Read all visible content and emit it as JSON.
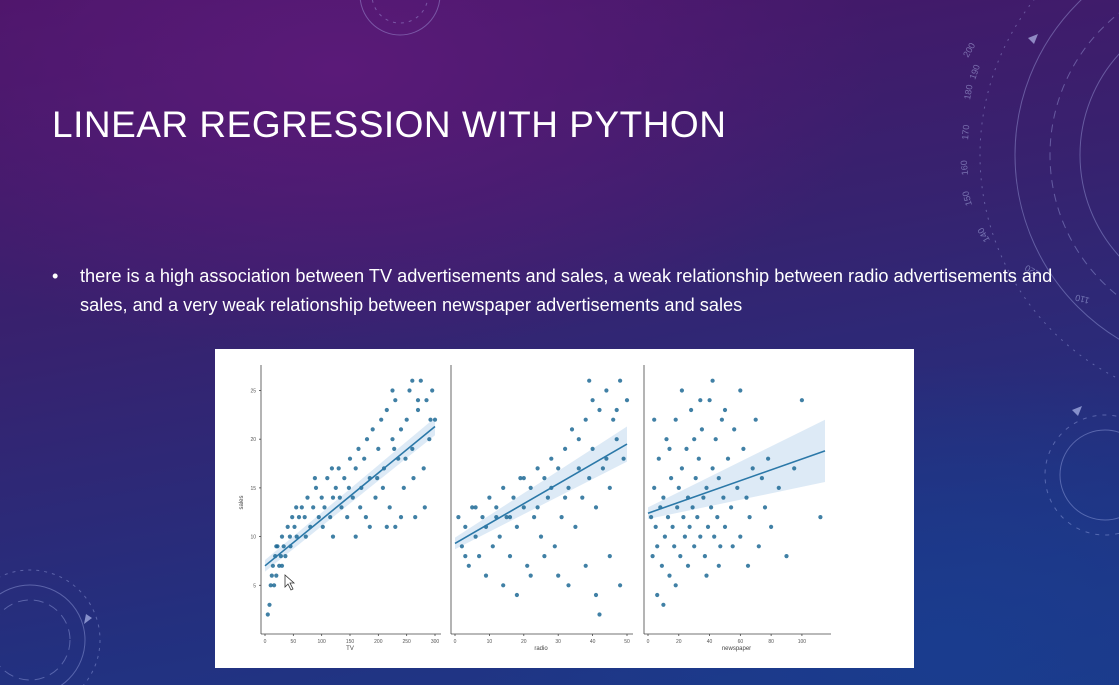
{
  "slide": {
    "title": "LINEAR REGRESSION WITH PYTHON",
    "bullets": [
      "there is a high association between TV advertisements and sales, a weak relationship between radio advertisements and sales, and a very weak relationship between newspaper advertisements and sales"
    ],
    "bullet_symbol": "•",
    "decor_numbers": [
      "200",
      "190",
      "180",
      "170",
      "160",
      "150",
      "140",
      "120",
      "110"
    ]
  },
  "chart_data": [
    {
      "type": "scatter",
      "xlabel": "TV",
      "ylabel": "sales",
      "xlim": [
        0,
        300
      ],
      "ylim": [
        0,
        27
      ],
      "xticks": [
        0,
        50,
        100,
        150,
        200,
        250,
        300
      ],
      "yticks": [
        5,
        10,
        15,
        20,
        25
      ],
      "regression": [
        [
          0,
          7.0
        ],
        [
          300,
          21.3
        ]
      ],
      "points": [
        [
          5,
          2
        ],
        [
          8,
          3
        ],
        [
          10,
          5
        ],
        [
          12,
          6
        ],
        [
          14,
          7
        ],
        [
          16,
          5
        ],
        [
          18,
          8
        ],
        [
          20,
          6
        ],
        [
          22,
          9
        ],
        [
          25,
          7
        ],
        [
          28,
          8
        ],
        [
          30,
          10
        ],
        [
          33,
          9
        ],
        [
          36,
          8
        ],
        [
          40,
          11
        ],
        [
          44,
          10
        ],
        [
          48,
          12
        ],
        [
          52,
          11
        ],
        [
          56,
          10
        ],
        [
          60,
          12
        ],
        [
          65,
          13
        ],
        [
          70,
          12
        ],
        [
          75,
          14
        ],
        [
          80,
          11
        ],
        [
          85,
          13
        ],
        [
          90,
          15
        ],
        [
          95,
          12
        ],
        [
          100,
          14
        ],
        [
          105,
          13
        ],
        [
          110,
          16
        ],
        [
          115,
          12
        ],
        [
          120,
          14
        ],
        [
          125,
          15
        ],
        [
          130,
          17
        ],
        [
          135,
          13
        ],
        [
          140,
          16
        ],
        [
          145,
          12
        ],
        [
          150,
          18
        ],
        [
          155,
          14
        ],
        [
          160,
          17
        ],
        [
          165,
          19
        ],
        [
          170,
          15
        ],
        [
          175,
          18
        ],
        [
          180,
          20
        ],
        [
          185,
          16
        ],
        [
          190,
          21
        ],
        [
          195,
          14
        ],
        [
          200,
          19
        ],
        [
          205,
          22
        ],
        [
          210,
          17
        ],
        [
          215,
          23
        ],
        [
          220,
          13
        ],
        [
          225,
          20
        ],
        [
          230,
          24
        ],
        [
          235,
          18
        ],
        [
          240,
          21
        ],
        [
          245,
          15
        ],
        [
          250,
          22
        ],
        [
          255,
          25
        ],
        [
          260,
          19
        ],
        [
          265,
          12
        ],
        [
          270,
          23
        ],
        [
          275,
          26
        ],
        [
          280,
          17
        ],
        [
          285,
          24
        ],
        [
          290,
          20
        ],
        [
          295,
          25
        ],
        [
          300,
          22
        ],
        [
          215,
          11
        ],
        [
          240,
          12
        ],
        [
          230,
          11
        ],
        [
          185,
          11
        ],
        [
          160,
          10
        ],
        [
          120,
          10
        ],
        [
          20,
          9
        ],
        [
          30,
          7
        ],
        [
          45,
          9
        ],
        [
          55,
          13
        ],
        [
          72,
          10
        ],
        [
          88,
          16
        ],
        [
          102,
          11
        ],
        [
          118,
          17
        ],
        [
          132,
          14
        ],
        [
          148,
          15
        ],
        [
          168,
          13
        ],
        [
          178,
          12
        ],
        [
          198,
          16
        ],
        [
          208,
          15
        ],
        [
          228,
          19
        ],
        [
          248,
          18
        ],
        [
          262,
          16
        ],
        [
          282,
          13
        ],
        [
          292,
          22
        ],
        [
          225,
          25
        ],
        [
          260,
          26
        ],
        [
          270,
          24
        ]
      ]
    },
    {
      "type": "scatter",
      "xlabel": "radio",
      "ylabel": "",
      "xlim": [
        0,
        50
      ],
      "ylim": [
        0,
        27
      ],
      "xticks": [
        0,
        10,
        20,
        30,
        40,
        50
      ],
      "yticks": [],
      "regression": [
        [
          0,
          9.3
        ],
        [
          50,
          19.5
        ]
      ],
      "points": [
        [
          1,
          12
        ],
        [
          2,
          9
        ],
        [
          3,
          11
        ],
        [
          4,
          7
        ],
        [
          5,
          13
        ],
        [
          6,
          10
        ],
        [
          7,
          8
        ],
        [
          8,
          12
        ],
        [
          9,
          11
        ],
        [
          10,
          14
        ],
        [
          11,
          9
        ],
        [
          12,
          13
        ],
        [
          13,
          10
        ],
        [
          14,
          15
        ],
        [
          15,
          12
        ],
        [
          16,
          8
        ],
        [
          17,
          14
        ],
        [
          18,
          11
        ],
        [
          19,
          16
        ],
        [
          20,
          13
        ],
        [
          21,
          7
        ],
        [
          22,
          15
        ],
        [
          23,
          12
        ],
        [
          24,
          17
        ],
        [
          25,
          10
        ],
        [
          26,
          16
        ],
        [
          27,
          14
        ],
        [
          28,
          18
        ],
        [
          29,
          9
        ],
        [
          30,
          17
        ],
        [
          31,
          12
        ],
        [
          32,
          19
        ],
        [
          33,
          15
        ],
        [
          34,
          21
        ],
        [
          35,
          11
        ],
        [
          36,
          20
        ],
        [
          37,
          14
        ],
        [
          38,
          22
        ],
        [
          39,
          16
        ],
        [
          40,
          24
        ],
        [
          41,
          13
        ],
        [
          42,
          23
        ],
        [
          43,
          17
        ],
        [
          44,
          25
        ],
        [
          45,
          15
        ],
        [
          46,
          22
        ],
        [
          47,
          20
        ],
        [
          48,
          26
        ],
        [
          49,
          18
        ],
        [
          50,
          24
        ],
        [
          3,
          8
        ],
        [
          6,
          13
        ],
        [
          9,
          6
        ],
        [
          14,
          5
        ],
        [
          18,
          4
        ],
        [
          22,
          6
        ],
        [
          26,
          8
        ],
        [
          30,
          6
        ],
        [
          33,
          5
        ],
        [
          38,
          7
        ],
        [
          41,
          4
        ],
        [
          45,
          8
        ],
        [
          48,
          5
        ],
        [
          12,
          12
        ],
        [
          16,
          12
        ],
        [
          20,
          16
        ],
        [
          24,
          13
        ],
        [
          28,
          15
        ],
        [
          32,
          14
        ],
        [
          36,
          17
        ],
        [
          40,
          19
        ],
        [
          44,
          18
        ],
        [
          47,
          23
        ],
        [
          39,
          26
        ],
        [
          42,
          2
        ]
      ]
    },
    {
      "type": "scatter",
      "xlabel": "newspaper",
      "ylabel": "",
      "xlim": [
        0,
        115
      ],
      "ylim": [
        0,
        27
      ],
      "xticks": [
        0,
        20,
        40,
        60,
        80,
        100
      ],
      "yticks": [],
      "regression": [
        [
          0,
          12.4
        ],
        [
          115,
          18.8
        ]
      ],
      "points": [
        [
          2,
          12
        ],
        [
          3,
          8
        ],
        [
          4,
          15
        ],
        [
          5,
          11
        ],
        [
          6,
          9
        ],
        [
          7,
          18
        ],
        [
          8,
          13
        ],
        [
          9,
          7
        ],
        [
          10,
          14
        ],
        [
          11,
          10
        ],
        [
          12,
          20
        ],
        [
          13,
          12
        ],
        [
          14,
          6
        ],
        [
          15,
          16
        ],
        [
          16,
          11
        ],
        [
          17,
          9
        ],
        [
          18,
          22
        ],
        [
          19,
          13
        ],
        [
          20,
          15
        ],
        [
          21,
          8
        ],
        [
          22,
          17
        ],
        [
          23,
          12
        ],
        [
          24,
          10
        ],
        [
          25,
          19
        ],
        [
          26,
          14
        ],
        [
          27,
          11
        ],
        [
          28,
          23
        ],
        [
          29,
          13
        ],
        [
          30,
          9
        ],
        [
          31,
          16
        ],
        [
          32,
          12
        ],
        [
          33,
          18
        ],
        [
          34,
          10
        ],
        [
          35,
          21
        ],
        [
          36,
          14
        ],
        [
          37,
          8
        ],
        [
          38,
          15
        ],
        [
          39,
          11
        ],
        [
          40,
          24
        ],
        [
          41,
          13
        ],
        [
          42,
          17
        ],
        [
          43,
          10
        ],
        [
          44,
          20
        ],
        [
          45,
          12
        ],
        [
          46,
          16
        ],
        [
          47,
          9
        ],
        [
          48,
          22
        ],
        [
          49,
          14
        ],
        [
          50,
          11
        ],
        [
          52,
          18
        ],
        [
          54,
          13
        ],
        [
          56,
          21
        ],
        [
          58,
          15
        ],
        [
          60,
          10
        ],
        [
          62,
          19
        ],
        [
          64,
          14
        ],
        [
          66,
          12
        ],
        [
          68,
          17
        ],
        [
          70,
          22
        ],
        [
          72,
          9
        ],
        [
          74,
          16
        ],
        [
          76,
          13
        ],
        [
          78,
          18
        ],
        [
          80,
          11
        ],
        [
          85,
          15
        ],
        [
          90,
          8
        ],
        [
          95,
          17
        ],
        [
          100,
          24
        ],
        [
          112,
          12
        ],
        [
          4,
          22
        ],
        [
          6,
          4
        ],
        [
          10,
          3
        ],
        [
          14,
          19
        ],
        [
          18,
          5
        ],
        [
          22,
          25
        ],
        [
          26,
          7
        ],
        [
          30,
          20
        ],
        [
          34,
          24
        ],
        [
          38,
          6
        ],
        [
          42,
          26
        ],
        [
          46,
          7
        ],
        [
          50,
          23
        ],
        [
          55,
          9
        ],
        [
          60,
          25
        ],
        [
          65,
          7
        ]
      ]
    }
  ]
}
